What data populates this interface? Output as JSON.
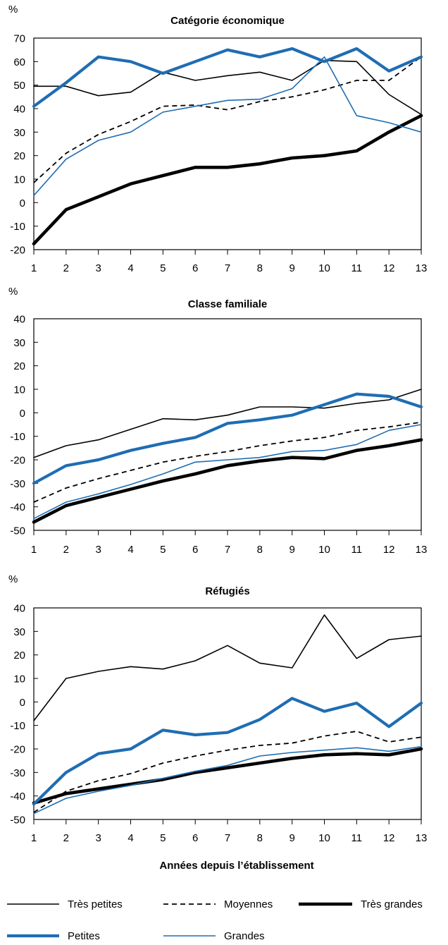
{
  "xlabel": "Années depuis l’établissement",
  "unit": "%",
  "colors": {
    "line_black": "#000000",
    "line_blue": "#1f6db3"
  },
  "legend": [
    {
      "name": "Très petites",
      "style": "thin-black"
    },
    {
      "name": "Moyennes",
      "style": "dashed-black"
    },
    {
      "name": "Très grandes",
      "style": "thick-black"
    },
    {
      "name": "Petites",
      "style": "thick-blue"
    },
    {
      "name": "Grandes",
      "style": "thin-blue"
    }
  ],
  "chart_data": [
    {
      "type": "line",
      "title": "Catégorie économique",
      "ylabel": "%",
      "x": [
        1,
        2,
        3,
        4,
        5,
        6,
        7,
        8,
        9,
        10,
        11,
        12,
        13
      ],
      "ylim": [
        -20,
        70
      ],
      "yticks": [
        -20,
        -10,
        0,
        10,
        20,
        30,
        40,
        50,
        60,
        70
      ],
      "series": [
        {
          "name": "Très petites",
          "style": "thin-black",
          "values": [
            49.5,
            49.5,
            45.5,
            47,
            55.5,
            52,
            54,
            55.5,
            52,
            60.5,
            60,
            46,
            37.5
          ]
        },
        {
          "name": "Moyennes",
          "style": "dashed-black",
          "values": [
            8.5,
            21,
            29,
            34.5,
            41,
            41.5,
            39.5,
            43,
            45,
            48,
            52,
            52,
            62
          ]
        },
        {
          "name": "Très grandes",
          "style": "thick-black",
          "values": [
            -17.5,
            -3,
            2.5,
            8,
            11.5,
            15,
            15,
            16.5,
            19,
            20,
            22,
            30,
            37
          ]
        },
        {
          "name": "Petites",
          "style": "thick-blue",
          "values": [
            41,
            51,
            62,
            60,
            55,
            60,
            65,
            62,
            65.5,
            60,
            65.5,
            56,
            62
          ]
        },
        {
          "name": "Grandes",
          "style": "thin-blue",
          "values": [
            3,
            18.5,
            26.5,
            30,
            38.5,
            41,
            43.5,
            44,
            48.5,
            62,
            37,
            34,
            30
          ]
        }
      ]
    },
    {
      "type": "line",
      "title": "Classe familiale",
      "ylabel": "%",
      "x": [
        1,
        2,
        3,
        4,
        5,
        6,
        7,
        8,
        9,
        10,
        11,
        12,
        13
      ],
      "ylim": [
        -50,
        40
      ],
      "yticks": [
        -50,
        -40,
        -30,
        -20,
        -10,
        0,
        10,
        20,
        30,
        40
      ],
      "series": [
        {
          "name": "Très petites",
          "style": "thin-black",
          "values": [
            -19,
            -14,
            -11.5,
            -7,
            -2.5,
            -3,
            -1,
            2.5,
            2.5,
            2,
            4,
            5.5,
            10
          ]
        },
        {
          "name": "Moyennes",
          "style": "dashed-black",
          "values": [
            -38,
            -32,
            -28,
            -24.5,
            -21,
            -18.5,
            -16.5,
            -14,
            -12,
            -10.5,
            -7.5,
            -6,
            -4
          ]
        },
        {
          "name": "Très grandes",
          "style": "thick-black",
          "values": [
            -46.5,
            -39.5,
            -36,
            -32.5,
            -29,
            -26,
            -22.5,
            -20.5,
            -19,
            -19.5,
            -16,
            -14,
            -11.5
          ]
        },
        {
          "name": "Petites",
          "style": "thick-blue",
          "values": [
            -30,
            -22.5,
            -20,
            -16,
            -13,
            -10.5,
            -4.5,
            -3,
            -1,
            3.5,
            8,
            7,
            2.5
          ]
        },
        {
          "name": "Grandes",
          "style": "thin-blue",
          "values": [
            -45,
            -38,
            -34.5,
            -30.5,
            -26,
            -21,
            -20,
            -19,
            -16.5,
            -16,
            -13.5,
            -7.5,
            -5
          ]
        }
      ]
    },
    {
      "type": "line",
      "title": "Réfugiés",
      "ylabel": "%",
      "x": [
        1,
        2,
        3,
        4,
        5,
        6,
        7,
        8,
        9,
        10,
        11,
        12,
        13
      ],
      "ylim": [
        -50,
        40
      ],
      "yticks": [
        -50,
        -40,
        -30,
        -20,
        -10,
        0,
        10,
        20,
        30,
        40
      ],
      "series": [
        {
          "name": "Très petites",
          "style": "thin-black",
          "values": [
            -8,
            10,
            13,
            15,
            14,
            17.5,
            24,
            16.5,
            14.5,
            37,
            18.5,
            26.5,
            28
          ]
        },
        {
          "name": "Moyennes",
          "style": "dashed-black",
          "values": [
            -47,
            -38,
            -33.5,
            -30.5,
            -26,
            -23,
            -20.5,
            -18.5,
            -17.5,
            -14.5,
            -12.5,
            -17,
            -15
          ]
        },
        {
          "name": "Très grandes",
          "style": "thick-black",
          "values": [
            -43,
            -39,
            -37,
            -35,
            -33,
            -30,
            -28,
            -26,
            -24,
            -22.5,
            -22,
            -22.5,
            -20
          ]
        },
        {
          "name": "Petites",
          "style": "thick-blue",
          "values": [
            -43.5,
            -30,
            -22,
            -20,
            -12,
            -14,
            -13,
            -7.5,
            1.5,
            -4,
            -0.5,
            -10.5,
            -0.5
          ]
        },
        {
          "name": "Grandes",
          "style": "thin-blue",
          "values": [
            -47.5,
            -41,
            -38,
            -35.5,
            -32.5,
            -29.5,
            -27,
            -23,
            -21.5,
            -20.5,
            -19.5,
            -21,
            -19
          ]
        }
      ]
    }
  ]
}
